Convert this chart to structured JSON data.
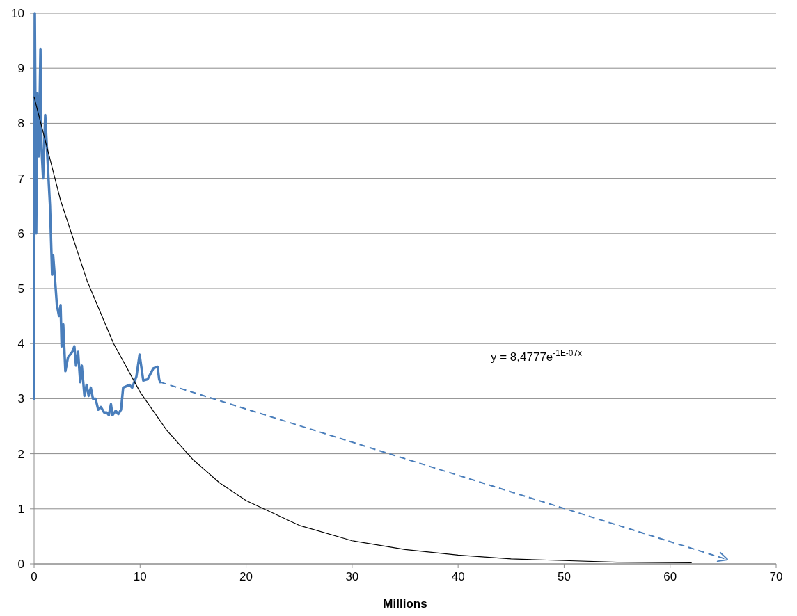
{
  "chart_data": {
    "type": "line",
    "xlabel": "Millions",
    "xlim": [
      0,
      70
    ],
    "xticks": [
      0,
      10,
      20,
      30,
      40,
      50,
      60,
      70
    ],
    "ylim": [
      0,
      10
    ],
    "yticks": [
      0,
      1,
      2,
      3,
      4,
      5,
      6,
      7,
      8,
      9,
      10
    ],
    "grid": "y",
    "marker": "none",
    "annotations": [
      "y = 8,4777e$^{-1E-07x}$"
    ],
    "series": [
      {
        "color": "#4a7ebb",
        "line_style": "solid",
        "x": [
          0,
          0,
          0.07,
          0.2,
          0.3,
          0.45,
          0.6,
          0.7,
          0.85,
          1.05,
          1.25,
          1.5,
          1.7,
          1.8,
          2.0,
          2.15,
          2.35,
          2.5,
          2.6,
          2.75,
          2.95,
          3.2,
          3.6,
          3.8,
          3.95,
          4.15,
          4.35,
          4.5,
          4.75,
          4.95,
          5.15,
          5.35,
          5.55,
          5.8,
          6.05,
          6.3,
          6.6,
          6.85,
          7.05,
          7.25,
          7.4,
          7.7,
          7.95,
          8.2,
          8.4,
          9.0,
          9.25,
          9.65,
          9.95,
          10.3,
          10.7,
          11.25,
          11.65,
          11.8,
          11.9
        ],
        "values": [
          3.0,
          4.5,
          10,
          6.0,
          8.55,
          7.4,
          9.35,
          7.55,
          7.0,
          8.15,
          7.4,
          6.5,
          5.25,
          5.6,
          5.1,
          4.7,
          4.5,
          4.7,
          3.95,
          4.35,
          3.5,
          3.75,
          3.85,
          3.95,
          3.6,
          3.85,
          3.3,
          3.6,
          3.05,
          3.25,
          3.05,
          3.2,
          3.0,
          3.0,
          2.8,
          2.85,
          2.75,
          2.75,
          2.7,
          2.9,
          2.7,
          2.78,
          2.72,
          2.8,
          3.2,
          3.25,
          3.2,
          3.4,
          3.8,
          3.33,
          3.35,
          3.55,
          3.58,
          3.35,
          3.3
        ]
      },
      {
        "color": "#000000",
        "line_style": "solid",
        "x": [
          0,
          2.5,
          5,
          7.5,
          10,
          12.5,
          15,
          17.5,
          20,
          25,
          30,
          35,
          40,
          45,
          50,
          55,
          62
        ],
        "values": [
          8.48,
          6.6,
          5.14,
          4.0,
          3.12,
          2.43,
          1.89,
          1.47,
          1.15,
          0.7,
          0.42,
          0.26,
          0.16,
          0.09,
          0.06,
          0.03,
          0.02
        ]
      }
    ]
  }
}
